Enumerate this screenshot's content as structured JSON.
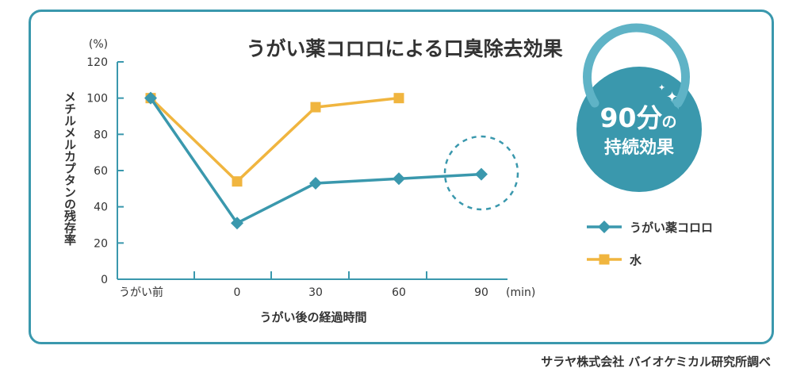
{
  "chart_data": {
    "type": "line",
    "title": "うがい薬コロロによる口臭除去効果",
    "ylabel": "メチルメルカプタンの残存率",
    "yunit": "(%)",
    "xlabel": "うがい後の経過時間",
    "xunit": "(min)",
    "categories": [
      "うがい前",
      "0",
      "30",
      "60",
      "90"
    ],
    "yticks": [
      0,
      20,
      40,
      60,
      80,
      100,
      120
    ],
    "ylim": [
      0,
      120
    ],
    "series": [
      {
        "name": "うがい薬コロロ",
        "color": "#3a98ad",
        "marker": "diamond",
        "values": [
          100,
          31,
          53,
          55.5,
          58
        ]
      },
      {
        "name": "水",
        "color": "#f0b53f",
        "marker": "square",
        "values": [
          100,
          54,
          95,
          100,
          null
        ]
      }
    ]
  },
  "badge": {
    "line1": "90分",
    "line1_suffix": "の",
    "line2": "持続効果"
  },
  "source": "サラヤ株式会社 バイオケミカル研究所調べ"
}
